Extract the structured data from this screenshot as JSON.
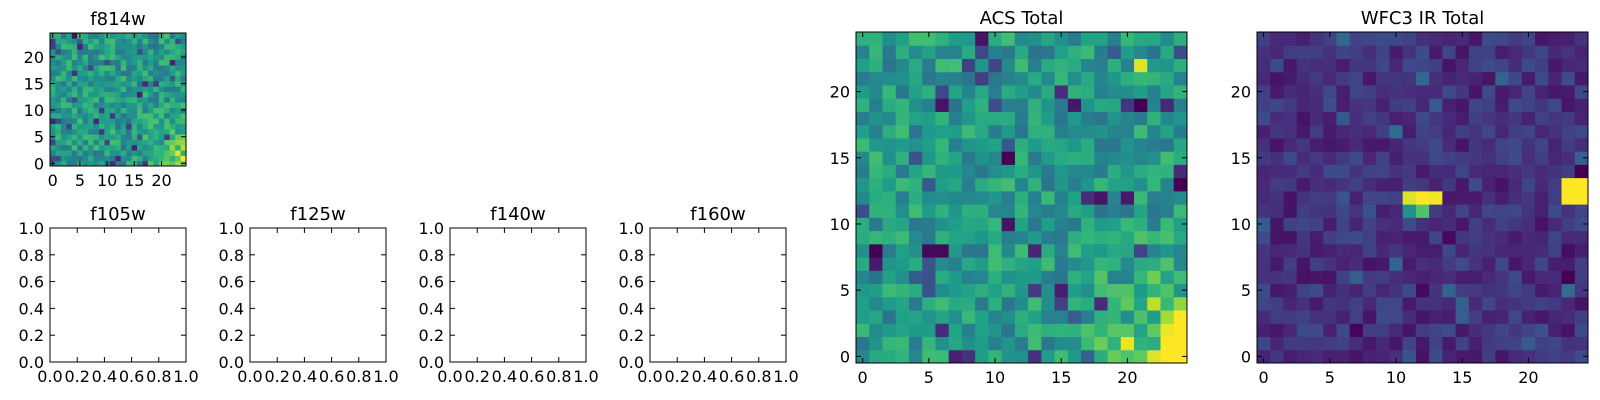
{
  "chart_data": [
    {
      "type": "heatmap",
      "title": "f814w",
      "grid_size": [
        25,
        25
      ],
      "xticks": [
        "0",
        "5",
        "10",
        "15",
        "20"
      ],
      "yticks": [
        "0",
        "5",
        "10",
        "15",
        "20"
      ],
      "xlim": [
        -0.5,
        24.5
      ],
      "ylim": [
        -0.5,
        24.5
      ],
      "colormap": "viridis",
      "seed": 11,
      "pattern": "noise-high-bright-corner",
      "hotspots": [
        {
          "x": 24,
          "y": 1,
          "v": 1.0
        },
        {
          "x": 23,
          "y": 2,
          "v": 0.95
        },
        {
          "x": 24,
          "y": 3,
          "v": 0.9
        },
        {
          "x": 23,
          "y": 0,
          "v": 0.85
        }
      ]
    },
    {
      "type": "empty",
      "title": "f105w",
      "xticks": [
        "0.0",
        "0.2",
        "0.4",
        "0.6",
        "0.8",
        "1.0"
      ],
      "yticks": [
        "0.0",
        "0.2",
        "0.4",
        "0.6",
        "0.8",
        "1.0"
      ]
    },
    {
      "type": "empty",
      "title": "f125w",
      "xticks": [
        "0.0",
        "0.2",
        "0.4",
        "0.6",
        "0.8",
        "1.0"
      ],
      "yticks": [
        "0.0",
        "0.2",
        "0.4",
        "0.6",
        "0.8",
        "1.0"
      ]
    },
    {
      "type": "empty",
      "title": "f140w",
      "xticks": [
        "0.0",
        "0.2",
        "0.4",
        "0.6",
        "0.8",
        "1.0"
      ],
      "yticks": [
        "0.0",
        "0.2",
        "0.4",
        "0.6",
        "0.8",
        "1.0"
      ]
    },
    {
      "type": "empty",
      "title": "f160w",
      "xticks": [
        "0.0",
        "0.2",
        "0.4",
        "0.6",
        "0.8",
        "1.0"
      ],
      "yticks": [
        "0.0",
        "0.2",
        "0.4",
        "0.6",
        "0.8",
        "1.0"
      ]
    },
    {
      "type": "heatmap",
      "title": "ACS Total",
      "grid_size": [
        25,
        25
      ],
      "xticks": [
        "0",
        "5",
        "10",
        "15",
        "20"
      ],
      "yticks": [
        "0",
        "5",
        "10",
        "15",
        "20"
      ],
      "xlim": [
        -0.5,
        24.5
      ],
      "ylim": [
        -0.5,
        24.5
      ],
      "colormap": "viridis",
      "seed": 29,
      "pattern": "noise-high-bright-corner",
      "hotspots": [
        {
          "x": 23,
          "y": 0,
          "v": 1.0
        },
        {
          "x": 24,
          "y": 0,
          "v": 1.0
        },
        {
          "x": 24,
          "y": 1,
          "v": 1.0
        },
        {
          "x": 23,
          "y": 1,
          "v": 1.0
        },
        {
          "x": 24,
          "y": 2,
          "v": 1.0
        },
        {
          "x": 23,
          "y": 2,
          "v": 0.97
        },
        {
          "x": 24,
          "y": 3,
          "v": 1.0
        },
        {
          "x": 20,
          "y": 1,
          "v": 0.97
        },
        {
          "x": 22,
          "y": 0,
          "v": 0.95
        },
        {
          "x": 22,
          "y": 4,
          "v": 0.9
        },
        {
          "x": 21,
          "y": 22,
          "v": 0.95
        },
        {
          "x": 11,
          "y": 15,
          "v": 0.0
        },
        {
          "x": 1,
          "y": 8,
          "v": 0.0
        },
        {
          "x": 5,
          "y": 8,
          "v": 0.02
        },
        {
          "x": 6,
          "y": 8,
          "v": 0.02
        },
        {
          "x": 24,
          "y": 13,
          "v": 0.0
        },
        {
          "x": 21,
          "y": 19,
          "v": 0.0
        },
        {
          "x": 9,
          "y": 24,
          "v": 0.05
        }
      ]
    },
    {
      "type": "heatmap",
      "title": "WFC3 IR Total",
      "grid_size": [
        25,
        25
      ],
      "xticks": [
        "0",
        "5",
        "10",
        "15",
        "20"
      ],
      "yticks": [
        "0",
        "5",
        "10",
        "15",
        "20"
      ],
      "xlim": [
        -0.5,
        24.5
      ],
      "ylim": [
        -0.5,
        24.5
      ],
      "colormap": "viridis",
      "seed": 53,
      "pattern": "noise-low",
      "hotspots": [
        {
          "x": 11,
          "y": 12,
          "v": 0.95
        },
        {
          "x": 12,
          "y": 12,
          "v": 1.0
        },
        {
          "x": 13,
          "y": 12,
          "v": 0.98
        },
        {
          "x": 11,
          "y": 11,
          "v": 0.5
        },
        {
          "x": 12,
          "y": 11,
          "v": 0.72
        },
        {
          "x": 23,
          "y": 13,
          "v": 1.0
        },
        {
          "x": 24,
          "y": 13,
          "v": 1.0
        },
        {
          "x": 23,
          "y": 12,
          "v": 1.0
        },
        {
          "x": 24,
          "y": 12,
          "v": 1.0
        }
      ]
    }
  ]
}
